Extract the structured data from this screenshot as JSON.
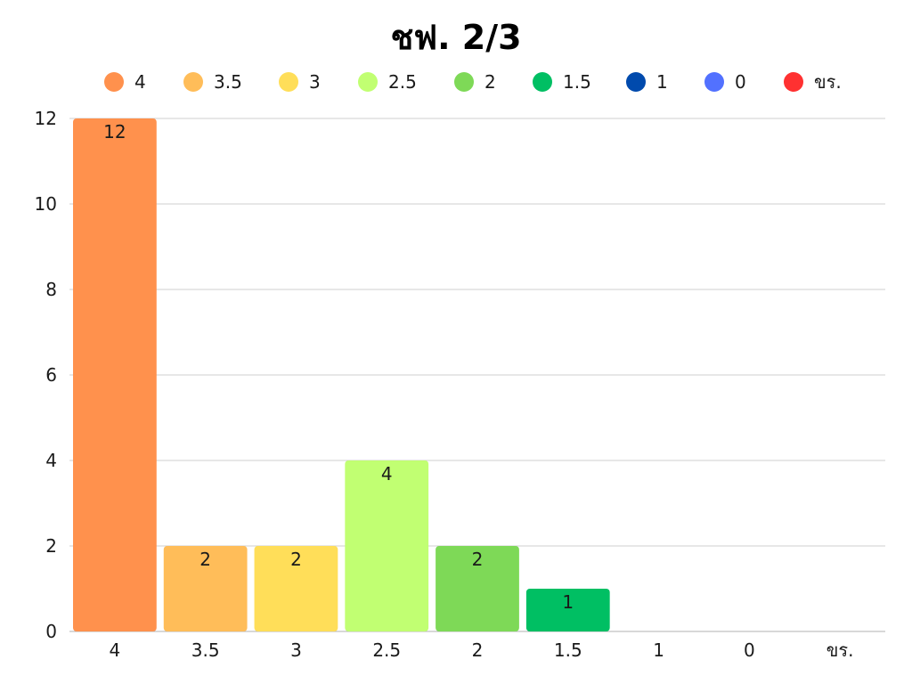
{
  "chart_data": {
    "type": "bar",
    "title": "ชฟ. 2/3",
    "xlabel": "",
    "ylabel": "",
    "categories": [
      "4",
      "3.5",
      "3",
      "2.5",
      "2",
      "1.5",
      "1",
      "0",
      "ขร."
    ],
    "values": [
      12,
      2,
      2,
      4,
      2,
      1,
      0,
      0,
      0
    ],
    "data_labels": [
      "12",
      "2",
      "2",
      "4",
      "2",
      "1",
      "",
      "",
      ""
    ],
    "colors": [
      "#ff914d",
      "#ffbd59",
      "#ffde59",
      "#c1ff72",
      "#7ed957",
      "#00bf63",
      "#004aad",
      "#5271ff",
      "#ff3131"
    ],
    "ylim": [
      0,
      12
    ],
    "yticks": [
      0,
      2,
      4,
      6,
      8,
      10,
      12
    ],
    "grid": true,
    "legend_position": "top",
    "legend": [
      {
        "label": "4",
        "color": "#ff914d"
      },
      {
        "label": "3.5",
        "color": "#ffbd59"
      },
      {
        "label": "3",
        "color": "#ffde59"
      },
      {
        "label": "2.5",
        "color": "#c1ff72"
      },
      {
        "label": "2",
        "color": "#7ed957"
      },
      {
        "label": "1.5",
        "color": "#00bf63"
      },
      {
        "label": "1",
        "color": "#004aad"
      },
      {
        "label": "0",
        "color": "#5271ff"
      },
      {
        "label": "ขร.",
        "color": "#ff3131"
      }
    ]
  }
}
